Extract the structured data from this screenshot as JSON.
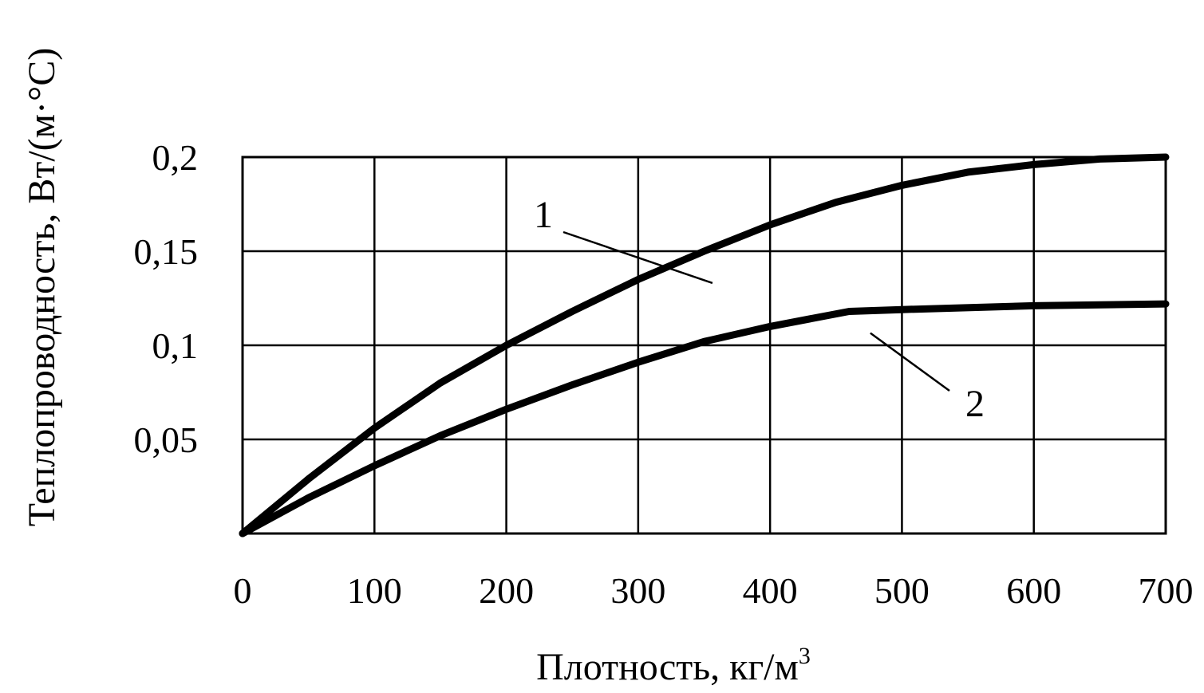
{
  "chart_data": {
    "type": "line",
    "xlabel": "Плотность, кг/м",
    "xlabel_superscript": "3",
    "ylabel": "Теплопроводность, Вт/(м·°С)",
    "xlim": [
      0,
      700
    ],
    "ylim": [
      0,
      0.2
    ],
    "x_ticks": [
      0,
      100,
      200,
      300,
      400,
      500,
      600,
      700
    ],
    "x_tick_labels": [
      "0",
      "100",
      "200",
      "300",
      "400",
      "500",
      "600",
      "700"
    ],
    "y_ticks": [
      0.05,
      0.1,
      0.15,
      0.2
    ],
    "y_tick_labels": [
      "0,05",
      "0,1",
      "0,15",
      "0,2"
    ],
    "grid": true,
    "legend": "none",
    "series": [
      {
        "label": "1",
        "color": "#000000",
        "x": [
          0,
          50,
          100,
          150,
          200,
          250,
          300,
          350,
          400,
          450,
          500,
          550,
          600,
          650,
          700
        ],
        "y": [
          0,
          0.029,
          0.056,
          0.08,
          0.1,
          0.118,
          0.135,
          0.15,
          0.164,
          0.176,
          0.185,
          0.192,
          0.196,
          0.199,
          0.2
        ]
      },
      {
        "label": "2",
        "color": "#000000",
        "x": [
          0,
          50,
          100,
          150,
          200,
          250,
          300,
          350,
          400,
          460,
          500,
          600,
          700
        ],
        "y": [
          0,
          0.019,
          0.036,
          0.052,
          0.066,
          0.079,
          0.091,
          0.102,
          0.11,
          0.118,
          0.119,
          0.121,
          0.122
        ]
      }
    ],
    "annotations": [
      {
        "text": "1",
        "series": "1",
        "anchor_x": 320,
        "anchor_y": 0.142
      },
      {
        "text": "2",
        "series": "2",
        "anchor_x": 470,
        "anchor_y": 0.115
      }
    ]
  }
}
